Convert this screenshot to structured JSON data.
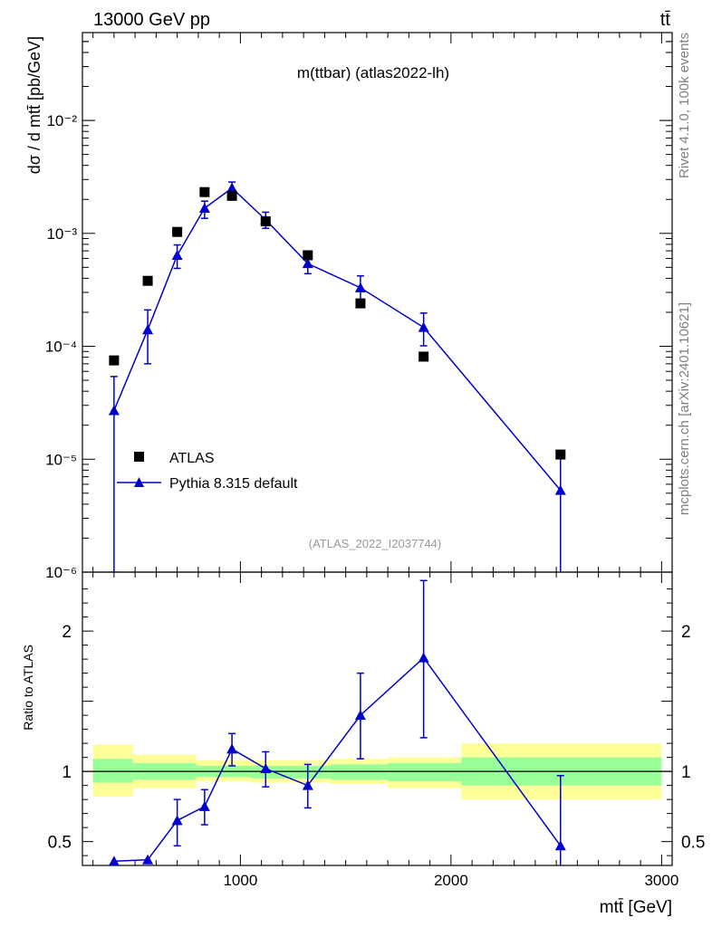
{
  "header": {
    "energy_label": "13000 GeV pp",
    "process_label": "tt̄",
    "plot_title": "m(ttbar) (atlas2022-lh)",
    "analysis_id": "(ATLAS_2022_I2037744)",
    "side_text_top": "Rivet 4.1.0,  100k events",
    "side_text_bottom": "mcplots.cern.ch [arXiv:2401.10621]"
  },
  "chart_data": [
    {
      "type": "scatter",
      "yscale": "log",
      "ylabel": "dσ / d mtt̄ [pb/GeV]",
      "xlim": [
        250,
        3050
      ],
      "ylim": [
        1e-06,
        0.06
      ],
      "yticks": [
        {
          "value": 1e-06,
          "label": "10⁻⁶"
        },
        {
          "value": 1e-05,
          "label": "10⁻⁵"
        },
        {
          "value": 0.0001,
          "label": "10⁻⁴"
        },
        {
          "value": 0.001,
          "label": "10⁻³"
        },
        {
          "value": 0.01,
          "label": "10⁻²"
        }
      ],
      "series": [
        {
          "name": "ATLAS",
          "marker": "square",
          "color": "#000000",
          "x": [
            400,
            560,
            700,
            830,
            960,
            1120,
            1320,
            1570,
            1870,
            2520
          ],
          "y": [
            7.5e-05,
            0.00038,
            0.00103,
            0.00232,
            0.00215,
            0.00128,
            0.00064,
            0.00024,
            8.1e-05,
            1.1e-05
          ]
        },
        {
          "name": "Pythia 8.315 default",
          "marker": "triangle",
          "color": "#0000cc",
          "x": [
            400,
            560,
            700,
            830,
            960,
            1120,
            1320,
            1570,
            1870,
            2520
          ],
          "y": [
            2.7e-05,
            0.00014,
            0.00064,
            0.00167,
            0.00252,
            0.00132,
            0.00054,
            0.00033,
            0.000147,
            5.3e-06
          ],
          "yerr_low": [
            2.6e-05,
            7e-05,
            0.00015,
            0.00031,
            0.00027,
            0.00021,
            0.0001,
            7.5e-05,
            4.6e-05,
            5.2e-06
          ],
          "yerr_high": [
            2.7e-05,
            7e-05,
            0.00015,
            0.00026,
            0.00033,
            0.00022,
            0.00011,
            9e-05,
            5e-05,
            5.7e-06
          ]
        }
      ],
      "legend": [
        "ATLAS",
        "Pythia 8.315 default"
      ],
      "legend_position": "bottom-left"
    },
    {
      "type": "line",
      "ylabel": "Ratio to ATLAS",
      "xlabel": "mtt̄ [GeV]",
      "xlim": [
        250,
        3050
      ],
      "ylim": [
        0.33,
        2.42
      ],
      "xticks": [
        1000,
        2000,
        3000
      ],
      "yticks": [
        {
          "value": 0.5,
          "label": "0.5"
        },
        {
          "value": 1,
          "label": "1"
        },
        {
          "value": 2,
          "label": "2"
        }
      ],
      "bands": [
        {
          "x0": 300,
          "x1": 490,
          "stat_lo": 0.92,
          "stat_hi": 1.09,
          "tot_lo": 0.82,
          "tot_hi": 1.19
        },
        {
          "x0": 490,
          "x1": 790,
          "stat_lo": 0.94,
          "stat_hi": 1.06,
          "tot_lo": 0.88,
          "tot_hi": 1.12
        },
        {
          "x0": 790,
          "x1": 1050,
          "stat_lo": 0.96,
          "stat_hi": 1.04,
          "tot_lo": 0.93,
          "tot_hi": 1.08
        },
        {
          "x0": 1050,
          "x1": 1430,
          "stat_lo": 0.95,
          "stat_hi": 1.04,
          "tot_lo": 0.92,
          "tot_hi": 1.08
        },
        {
          "x0": 1430,
          "x1": 1700,
          "stat_lo": 0.94,
          "stat_hi": 1.05,
          "tot_lo": 0.91,
          "tot_hi": 1.09
        },
        {
          "x0": 1700,
          "x1": 2050,
          "stat_lo": 0.93,
          "stat_hi": 1.06,
          "tot_lo": 0.88,
          "tot_hi": 1.1
        },
        {
          "x0": 2050,
          "x1": 3000,
          "stat_lo": 0.9,
          "stat_hi": 1.1,
          "tot_lo": 0.8,
          "tot_hi": 1.2
        }
      ],
      "series": [
        {
          "name": "Pythia 8.315 default",
          "color": "#0000cc",
          "x": [
            400,
            560,
            700,
            830,
            960,
            1120,
            1320,
            1570,
            1870,
            2520
          ],
          "y": [
            0.36,
            0.37,
            0.65,
            0.75,
            1.16,
            1.02,
            0.9,
            1.4,
            1.81,
            0.47
          ],
          "yerr_low": [
            0,
            0,
            0.18,
            0.13,
            0.12,
            0.13,
            0.16,
            0.31,
            0.57,
            0.47
          ],
          "yerr_high": [
            0,
            0,
            0.15,
            0.12,
            0.11,
            0.12,
            0.15,
            0.3,
            0.55,
            0.5
          ]
        }
      ]
    }
  ]
}
